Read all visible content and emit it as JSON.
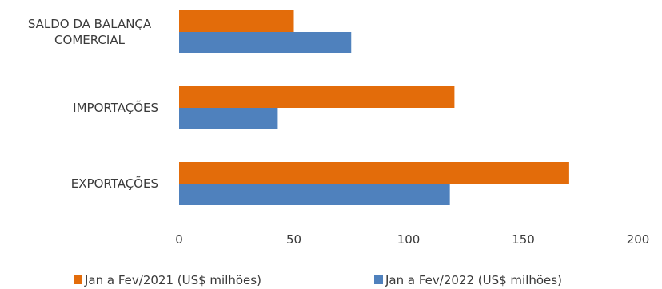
{
  "chart_data": {
    "type": "bar",
    "orientation": "horizontal",
    "categories": [
      "EXPORTAÇÕES",
      "IMPORTAÇÕES",
      "SALDO DA BALANÇA COMERCIAL"
    ],
    "category_label_lines": [
      [
        "EXPORTAÇÕES"
      ],
      [
        "IMPORTAÇÕES"
      ],
      [
        "SALDO DA BALANÇA",
        "COMERCIAL"
      ]
    ],
    "series": [
      {
        "name": "Jan a Fev/2021 (US$ milhões)",
        "color": "#E36C0A",
        "values": [
          170,
          120,
          50
        ]
      },
      {
        "name": "Jan a Fev/2022 (US$ milhões)",
        "color": "#4F81BD",
        "values": [
          118,
          43,
          75
        ]
      }
    ],
    "xlim": [
      0,
      200
    ],
    "xticks": [
      "0",
      "50",
      "100",
      "150",
      "200"
    ],
    "grid": false,
    "legend_position": "bottom"
  }
}
